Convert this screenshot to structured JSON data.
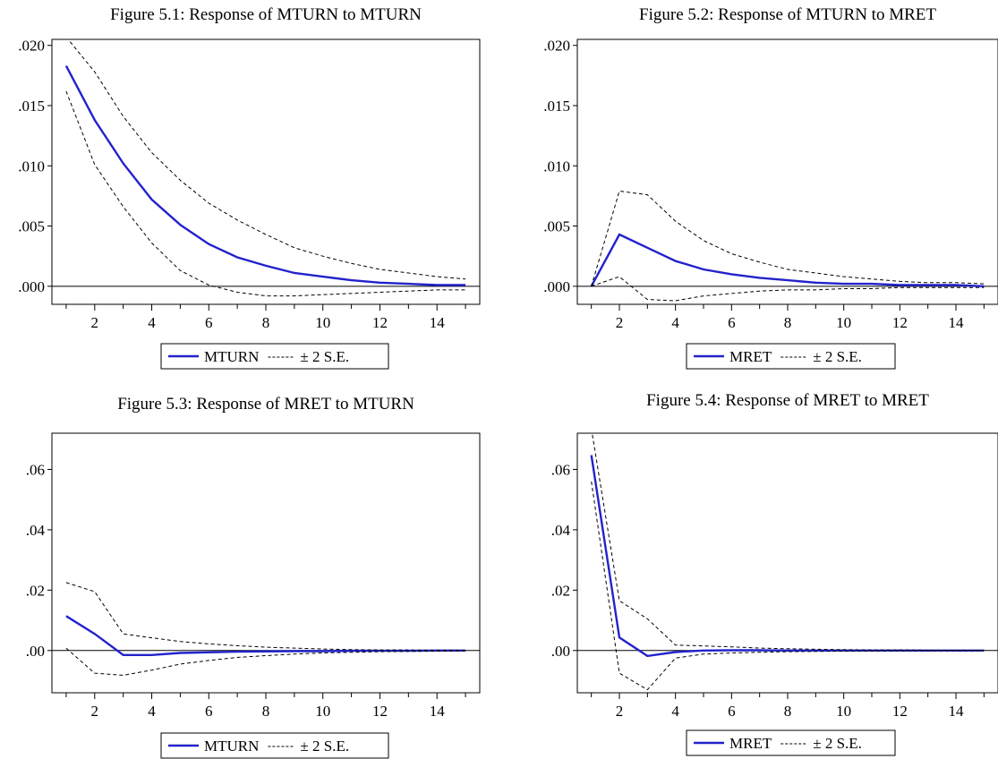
{
  "colors": {
    "response_line": "#2222cc",
    "band_line": "#000000",
    "zero_line": "#000000"
  },
  "chart_data": [
    {
      "type": "line",
      "title": "Figure 5.1: Response of MTURN to MTURN",
      "x": [
        1,
        2,
        3,
        4,
        5,
        6,
        7,
        8,
        9,
        10,
        11,
        12,
        13,
        14,
        15
      ],
      "xticks": [
        "2",
        "4",
        "6",
        "8",
        "10",
        "12",
        "14"
      ],
      "yticks": [
        ".000",
        ".005",
        ".010",
        ".015",
        ".020"
      ],
      "ytick_values": [
        0,
        0.005,
        0.01,
        0.015,
        0.02
      ],
      "xlim": [
        0.5,
        15.5
      ],
      "ylim": [
        -0.0015,
        0.0205
      ],
      "series": [
        {
          "name": "MTURN",
          "style": "solid",
          "values": [
            0.0183,
            0.0138,
            0.0102,
            0.0072,
            0.0051,
            0.0035,
            0.0024,
            0.0017,
            0.0011,
            0.0008,
            0.0005,
            0.0003,
            0.0002,
            0.0001,
            0.0001
          ]
        },
        {
          "name": "± 2 S.E.",
          "style": "dashed",
          "values": [
            0.0207,
            0.0178,
            0.0141,
            0.0111,
            0.0088,
            0.0069,
            0.0055,
            0.0043,
            0.0032,
            0.0025,
            0.0019,
            0.0014,
            0.0011,
            0.0008,
            0.0006
          ]
        },
        {
          "name": "± 2 S.E. lower",
          "style": "dashed",
          "values": [
            0.0162,
            0.0101,
            0.0066,
            0.0036,
            0.0013,
            0.0001,
            -0.0005,
            -0.0008,
            -0.0008,
            -0.0007,
            -0.0006,
            -0.0005,
            -0.0004,
            -0.0003,
            -0.0003
          ]
        }
      ],
      "legend": {
        "line_label": "MTURN",
        "band_label": "± 2 S.E."
      }
    },
    {
      "type": "line",
      "title": "Figure 5.2: Response of MTURN to MRET",
      "x": [
        1,
        2,
        3,
        4,
        5,
        6,
        7,
        8,
        9,
        10,
        11,
        12,
        13,
        14,
        15
      ],
      "xticks": [
        "2",
        "4",
        "6",
        "8",
        "10",
        "12",
        "14"
      ],
      "yticks": [
        ".000",
        ".005",
        ".010",
        ".015",
        ".020"
      ],
      "ytick_values": [
        0,
        0.005,
        0.01,
        0.015,
        0.02
      ],
      "xlim": [
        0.5,
        15.5
      ],
      "ylim": [
        -0.0015,
        0.0205
      ],
      "series": [
        {
          "name": "MRET",
          "style": "solid",
          "values": [
            0.0,
            0.0043,
            0.0032,
            0.0021,
            0.0014,
            0.001,
            0.0007,
            0.0005,
            0.0003,
            0.0002,
            0.0002,
            0.0001,
            0.0001,
            0.0001,
            0.0
          ]
        },
        {
          "name": "± 2 S.E.",
          "style": "dashed",
          "values": [
            0.0,
            0.0079,
            0.0076,
            0.0054,
            0.0038,
            0.0027,
            0.002,
            0.0014,
            0.0011,
            0.0008,
            0.0006,
            0.0004,
            0.0003,
            0.0003,
            0.0002
          ]
        },
        {
          "name": "± 2 S.E. lower",
          "style": "dashed",
          "values": [
            0.0,
            0.0008,
            -0.0011,
            -0.0012,
            -0.0008,
            -0.0006,
            -0.0004,
            -0.0003,
            -0.0003,
            -0.0002,
            -0.0002,
            -0.0001,
            -0.0001,
            -0.0001,
            -0.0001
          ]
        }
      ],
      "legend": {
        "line_label": "MRET",
        "band_label": "± 2 S.E."
      }
    },
    {
      "type": "line",
      "title": "Figure 5.3: Response of MRET to MTURN",
      "x": [
        1,
        2,
        3,
        4,
        5,
        6,
        7,
        8,
        9,
        10,
        11,
        12,
        13,
        14,
        15
      ],
      "xticks": [
        "2",
        "4",
        "6",
        "8",
        "10",
        "12",
        "14"
      ],
      "yticks": [
        ".00",
        ".02",
        ".04",
        ".06"
      ],
      "ytick_values": [
        0,
        0.02,
        0.04,
        0.06
      ],
      "xlim": [
        0.5,
        15.5
      ],
      "ylim": [
        -0.014,
        0.072
      ],
      "series": [
        {
          "name": "MTURN",
          "style": "solid",
          "values": [
            0.0114,
            0.0055,
            -0.0015,
            -0.0015,
            -0.0008,
            -0.0006,
            -0.0004,
            -0.0003,
            -0.0002,
            -0.0002,
            -0.0001,
            -0.0001,
            -0.0001,
            0.0,
            0.0
          ]
        },
        {
          "name": "± 2 S.E.",
          "style": "dashed",
          "values": [
            0.0225,
            0.0195,
            0.0055,
            0.0042,
            0.003,
            0.0022,
            0.0016,
            0.0011,
            0.0008,
            0.0005,
            0.0003,
            0.0002,
            0.0002,
            0.0001,
            0.0001
          ]
        },
        {
          "name": "± 2 S.E. lower",
          "style": "dashed",
          "values": [
            0.0008,
            -0.0075,
            -0.0082,
            -0.0065,
            -0.0045,
            -0.0033,
            -0.0023,
            -0.0017,
            -0.0012,
            -0.0008,
            -0.0006,
            -0.0004,
            -0.0003,
            -0.0002,
            -0.0001
          ]
        }
      ],
      "legend": {
        "line_label": "MTURN",
        "band_label": "± 2 S.E."
      }
    },
    {
      "type": "line",
      "title": "Figure 5.4: Response of MRET to MRET",
      "x": [
        1,
        2,
        3,
        4,
        5,
        6,
        7,
        8,
        9,
        10,
        11,
        12,
        13,
        14,
        15
      ],
      "xticks": [
        "2",
        "4",
        "6",
        "8",
        "10",
        "12",
        "14"
      ],
      "yticks": [
        ".00",
        ".02",
        ".04",
        ".06"
      ],
      "ytick_values": [
        0,
        0.02,
        0.04,
        0.06
      ],
      "xlim": [
        0.5,
        15.5
      ],
      "ylim": [
        -0.014,
        0.072
      ],
      "series": [
        {
          "name": "MRET",
          "style": "solid",
          "values": [
            0.0647,
            0.0043,
            -0.0018,
            -0.0005,
            0.0,
            0.0001,
            0.0001,
            0.0,
            0.0,
            0.0,
            0.0,
            0.0,
            0.0,
            0.0,
            0.0
          ]
        },
        {
          "name": "± 2 S.E.",
          "style": "dashed",
          "values": [
            0.0735,
            0.0165,
            0.0105,
            0.0018,
            0.0015,
            0.0012,
            0.0008,
            0.0006,
            0.0004,
            0.0003,
            0.0002,
            0.0002,
            0.0001,
            0.0001,
            0.0001
          ]
        },
        {
          "name": "± 2 S.E. lower",
          "style": "dashed",
          "values": [
            0.056,
            -0.0075,
            -0.013,
            -0.0025,
            -0.0012,
            -0.0008,
            -0.0006,
            -0.0004,
            -0.0003,
            -0.0002,
            -0.0002,
            -0.0001,
            -0.0001,
            -0.0001,
            -0.0001
          ]
        }
      ],
      "legend": {
        "line_label": "MRET",
        "band_label": "± 2 S.E."
      }
    }
  ]
}
